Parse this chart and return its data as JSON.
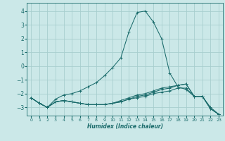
{
  "xlabel": "Humidex (Indice chaleur)",
  "bg_color": "#cbe8e8",
  "grid_color": "#a8cece",
  "line_color": "#1a6b6b",
  "xlim": [
    -0.5,
    23.5
  ],
  "ylim": [
    -3.6,
    4.6
  ],
  "yticks": [
    -3,
    -2,
    -1,
    0,
    1,
    2,
    3,
    4
  ],
  "xticks": [
    0,
    1,
    2,
    3,
    4,
    5,
    6,
    7,
    8,
    9,
    10,
    11,
    12,
    13,
    14,
    15,
    16,
    17,
    18,
    19,
    20,
    21,
    22,
    23
  ],
  "x": [
    0,
    1,
    2,
    3,
    4,
    5,
    6,
    7,
    8,
    9,
    10,
    11,
    12,
    13,
    14,
    15,
    16,
    17,
    18,
    19,
    20,
    21,
    22,
    23
  ],
  "series": [
    [
      -2.3,
      -2.7,
      -3.0,
      -2.4,
      -2.1,
      -2.0,
      -1.8,
      -1.5,
      -1.2,
      -0.7,
      -0.1,
      0.6,
      2.5,
      3.9,
      4.0,
      3.2,
      2.0,
      -0.5,
      -1.5,
      -1.7,
      -2.2,
      -2.2,
      -3.0,
      -3.5
    ],
    [
      -2.3,
      -2.7,
      -3.0,
      -2.6,
      -2.5,
      -2.6,
      -2.7,
      -2.8,
      -2.8,
      -2.8,
      -2.7,
      -2.6,
      -2.4,
      -2.3,
      -2.2,
      -2.0,
      -1.9,
      -1.8,
      -1.6,
      -1.6,
      -2.2,
      -2.2,
      -3.1,
      -3.5
    ],
    [
      -2.3,
      -2.7,
      -3.0,
      -2.6,
      -2.5,
      -2.6,
      -2.7,
      -2.8,
      -2.8,
      -2.8,
      -2.7,
      -2.6,
      -2.4,
      -2.2,
      -2.1,
      -1.9,
      -1.7,
      -1.6,
      -1.4,
      -1.3,
      -2.2,
      -2.2,
      -3.1,
      -3.5
    ],
    [
      -2.3,
      -2.7,
      -3.0,
      -2.6,
      -2.5,
      -2.6,
      -2.7,
      -2.8,
      -2.8,
      -2.8,
      -2.7,
      -2.5,
      -2.3,
      -2.1,
      -2.0,
      -1.8,
      -1.6,
      -1.5,
      -1.4,
      -1.3,
      -2.2,
      -2.2,
      -3.1,
      -3.5
    ]
  ]
}
